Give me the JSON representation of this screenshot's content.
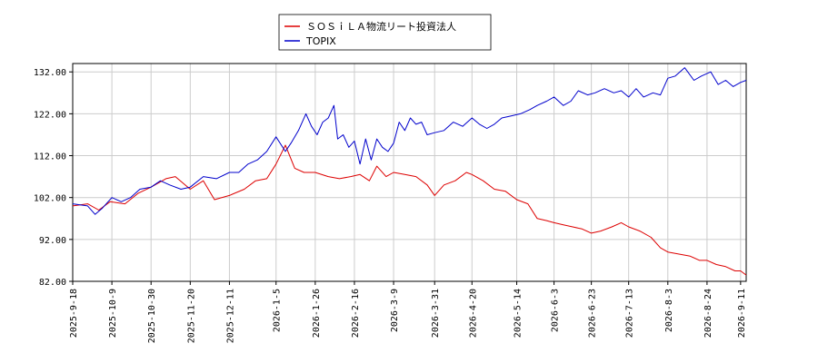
{
  "chart_data": {
    "type": "line",
    "title": "",
    "xlabel": "",
    "ylabel": "",
    "ylim": [
      82,
      134
    ],
    "y_ticks": [
      "82.00",
      "92.00",
      "102.00",
      "112.00",
      "122.00",
      "132.00"
    ],
    "x_tick_labels": [
      "2025-9-18",
      "2025-10-9",
      "2025-10-30",
      "2025-11-20",
      "2025-12-11",
      "2026-1-5",
      "2026-1-26",
      "2026-2-16",
      "2026-3-9",
      "2026-3-31",
      "2026-4-20",
      "2026-5-14",
      "2026-6-3",
      "2026-6-23",
      "2026-7-13",
      "2026-8-3",
      "2026-8-24",
      "2026-9-11"
    ],
    "x_tick_positions": [
      0,
      21,
      42,
      63,
      84,
      109,
      130,
      151,
      172,
      194,
      214,
      238,
      258,
      278,
      298,
      319,
      340,
      358
    ],
    "x_range": [
      0,
      361
    ],
    "grid": true,
    "legend_position": "top-center",
    "series": [
      {
        "name": "ＳＯＳｉＬＡ物流リート投資法人",
        "color": "#dd0000",
        "x": [
          0,
          8,
          14,
          20,
          28,
          35,
          42,
          50,
          55,
          63,
          70,
          76,
          84,
          92,
          98,
          104,
          109,
          114,
          119,
          124,
          130,
          137,
          143,
          149,
          154,
          159,
          163,
          168,
          172,
          178,
          184,
          190,
          194,
          199,
          205,
          211,
          214,
          220,
          226,
          232,
          238,
          244,
          249,
          254,
          258,
          263,
          268,
          273,
          278,
          283,
          289,
          294,
          298,
          304,
          310,
          315,
          319,
          325,
          331,
          336,
          340,
          345,
          350,
          355,
          358,
          361
        ],
        "values": [
          100,
          100.5,
          99,
          101,
          100.5,
          103,
          104.5,
          106.5,
          107,
          104,
          106,
          101.5,
          102.5,
          104,
          106,
          106.5,
          110,
          114.5,
          109,
          108,
          108,
          107,
          106.5,
          107,
          107.5,
          106,
          109.5,
          107,
          108,
          107.5,
          107,
          105,
          102.5,
          105,
          106,
          108,
          107.5,
          106,
          104,
          103.5,
          101.5,
          100.5,
          97,
          96.5,
          96,
          95.5,
          95,
          94.5,
          93.5,
          94,
          95,
          96,
          95,
          94,
          92.5,
          90,
          89,
          88.5,
          88,
          87,
          87,
          86,
          85.5,
          84.5,
          84.5,
          83.5
        ]
      },
      {
        "name": "TOPIX",
        "color": "#0000cc",
        "x": [
          0,
          8,
          12,
          16,
          21,
          26,
          31,
          36,
          42,
          47,
          52,
          58,
          63,
          70,
          77,
          84,
          89,
          94,
          99,
          104,
          109,
          114,
          117,
          121,
          125,
          128,
          131,
          134,
          137,
          140,
          142,
          145,
          148,
          151,
          154,
          157,
          160,
          163,
          166,
          169,
          172,
          175,
          178,
          181,
          184,
          187,
          190,
          194,
          199,
          204,
          209,
          214,
          218,
          222,
          226,
          230,
          235,
          240,
          245,
          249,
          254,
          258,
          263,
          267,
          271,
          276,
          280,
          285,
          290,
          294,
          298,
          302,
          306,
          311,
          315,
          319,
          323,
          328,
          333,
          337,
          342,
          346,
          350,
          354,
          358,
          361
        ],
        "values": [
          100.5,
          100,
          98,
          99.5,
          102,
          101,
          102,
          104,
          104.5,
          106,
          105,
          104,
          104.5,
          107,
          106.5,
          108,
          108,
          110,
          111,
          113,
          116.5,
          113,
          115,
          118,
          122,
          119,
          117,
          120,
          121,
          124,
          116,
          117,
          114,
          115.5,
          110,
          116,
          111,
          116,
          114,
          113,
          115,
          120,
          118,
          121,
          119.5,
          120,
          117,
          117.5,
          118,
          120,
          119,
          121,
          119.5,
          118.5,
          119.5,
          121,
          121.5,
          122,
          123,
          124,
          125,
          126,
          124,
          125,
          127.5,
          126.5,
          127,
          128,
          127,
          127.5,
          126,
          128,
          126,
          127,
          126.5,
          130.5,
          131,
          133,
          130,
          131,
          132,
          129,
          130,
          128.5,
          129.5,
          130
        ]
      }
    ]
  }
}
